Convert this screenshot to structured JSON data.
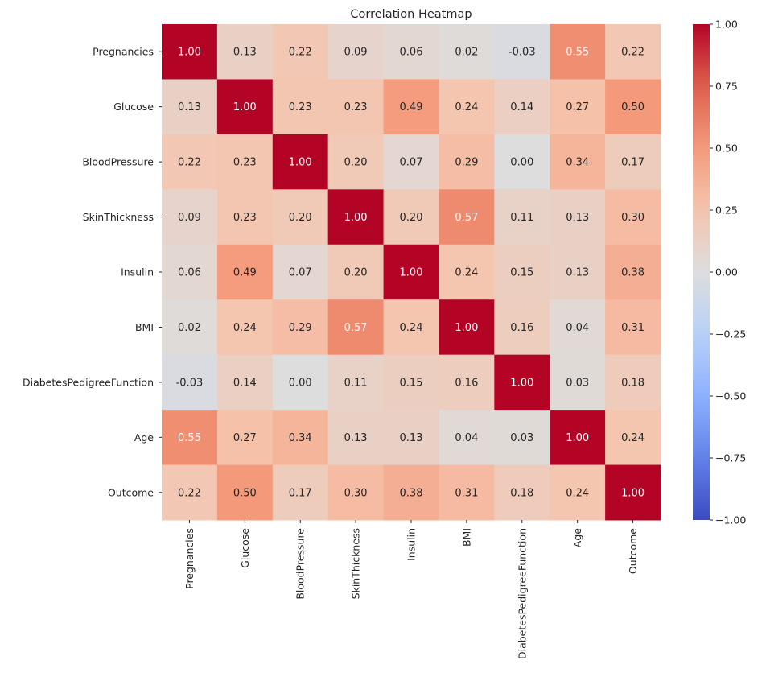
{
  "chart_data": {
    "type": "heatmap",
    "title": "Correlation Heatmap",
    "xlabel": "",
    "ylabel": "",
    "colormap": "coolwarm",
    "vmin": -1.0,
    "vmax": 1.0,
    "categories": [
      "Pregnancies",
      "Glucose",
      "BloodPressure",
      "SkinThickness",
      "Insulin",
      "BMI",
      "DiabetesPedigreeFunction",
      "Age",
      "Outcome"
    ],
    "values": [
      [
        1.0,
        0.13,
        0.22,
        0.09,
        0.06,
        0.02,
        -0.03,
        0.55,
        0.22
      ],
      [
        0.13,
        1.0,
        0.23,
        0.23,
        0.49,
        0.24,
        0.14,
        0.27,
        0.5
      ],
      [
        0.22,
        0.23,
        1.0,
        0.2,
        0.07,
        0.29,
        0.0,
        0.34,
        0.17
      ],
      [
        0.09,
        0.23,
        0.2,
        1.0,
        0.2,
        0.57,
        0.11,
        0.13,
        0.3
      ],
      [
        0.06,
        0.49,
        0.07,
        0.2,
        1.0,
        0.24,
        0.15,
        0.13,
        0.38
      ],
      [
        0.02,
        0.24,
        0.29,
        0.57,
        0.24,
        1.0,
        0.16,
        0.04,
        0.31
      ],
      [
        -0.03,
        0.14,
        0.0,
        0.11,
        0.15,
        0.16,
        1.0,
        0.03,
        0.18
      ],
      [
        0.55,
        0.27,
        0.34,
        0.13,
        0.13,
        0.04,
        0.03,
        1.0,
        0.24
      ],
      [
        0.22,
        0.5,
        0.17,
        0.3,
        0.38,
        0.31,
        0.18,
        0.24,
        1.0
      ]
    ],
    "annotation_format": "0.00",
    "colorbar_ticks": [
      "1.00",
      "0.75",
      "0.50",
      "0.25",
      "0.00",
      "−0.25",
      "−0.50",
      "−0.75",
      "−1.00"
    ],
    "colorbar_tick_values": [
      1.0,
      0.75,
      0.5,
      0.25,
      0.0,
      -0.25,
      -0.5,
      -0.75,
      -1.0
    ],
    "grid": false,
    "legend": "colorbar-right"
  }
}
